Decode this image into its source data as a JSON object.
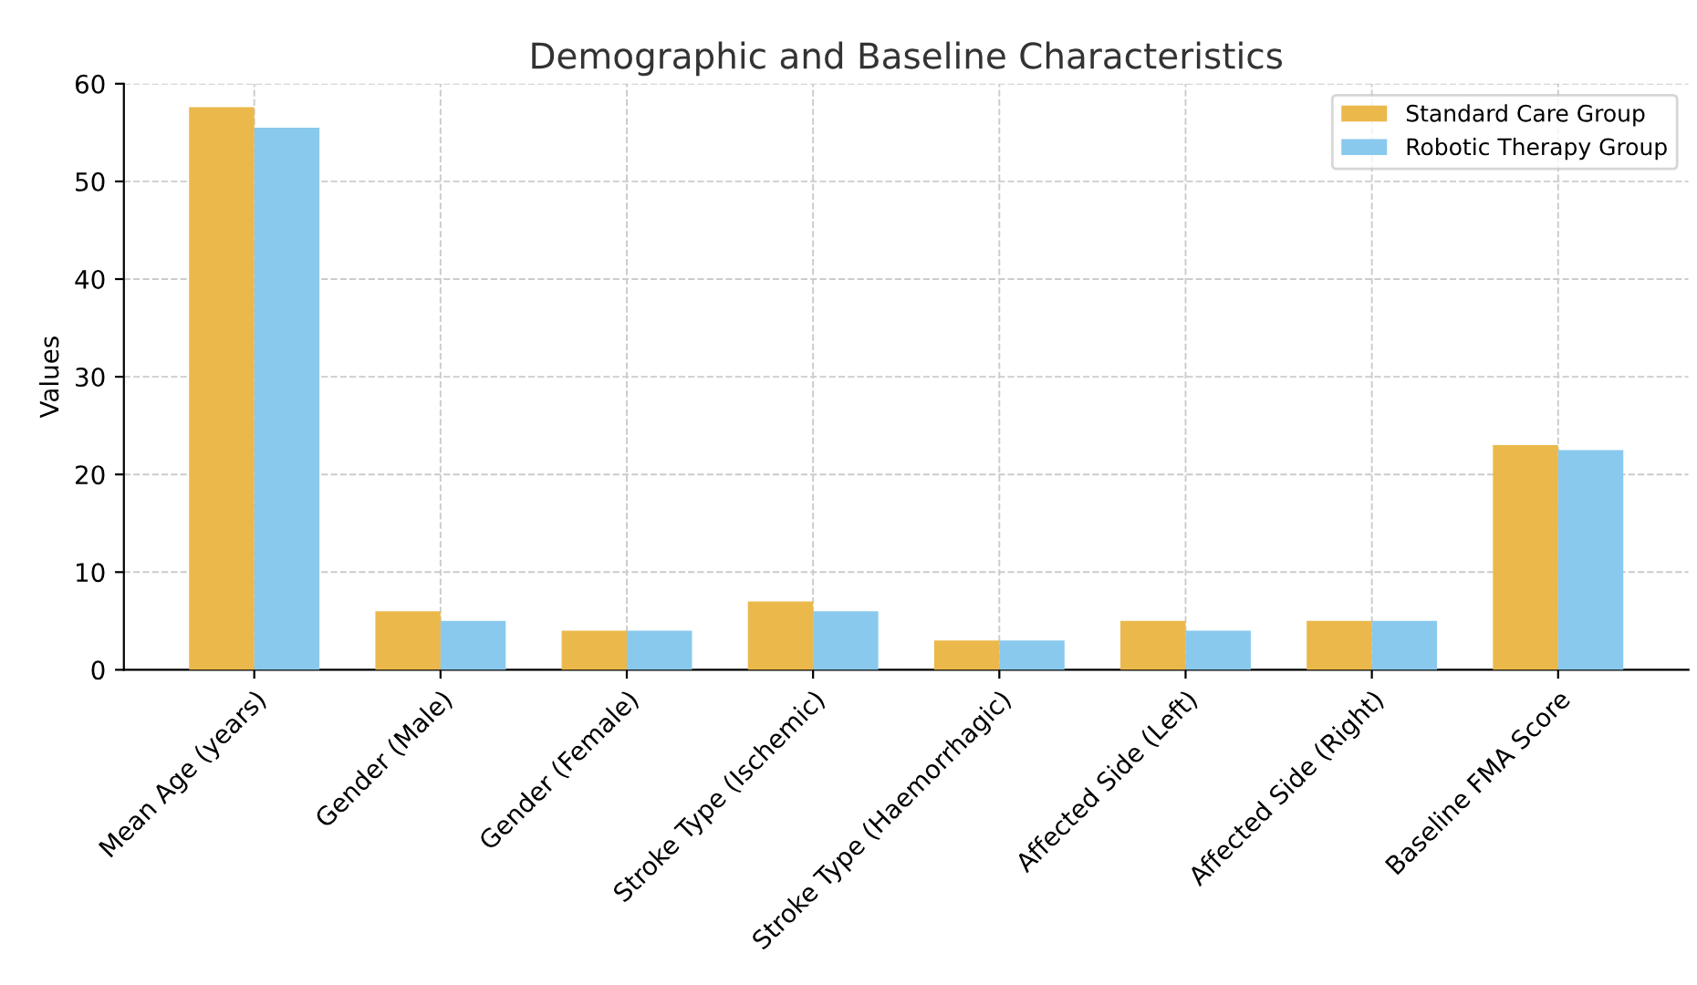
{
  "chart_data": {
    "type": "bar",
    "title": "Demographic and Baseline Characteristics",
    "ylabel": "Values",
    "categories": [
      "Mean Age (years)",
      "Gender (Male)",
      "Gender (Female)",
      "Stroke Type (Ischemic)",
      "Stroke Type (Haemorrhagic)",
      "Affected Side (Left)",
      "Affected Side (Right)",
      "Baseline FMA Score"
    ],
    "series": [
      {
        "name": "Standard Care Group",
        "color": "#ebb84b",
        "values": [
          57.6,
          6,
          4,
          7,
          3,
          5,
          5,
          23
        ]
      },
      {
        "name": "Robotic Therapy Group",
        "color": "#89c9ee",
        "values": [
          55.5,
          5,
          4,
          6,
          3,
          4,
          5,
          22.5
        ]
      }
    ],
    "ylim": [
      0,
      60
    ],
    "yticks": [
      0,
      10,
      20,
      30,
      40,
      50,
      60
    ],
    "grid": true,
    "legend": "top right"
  }
}
